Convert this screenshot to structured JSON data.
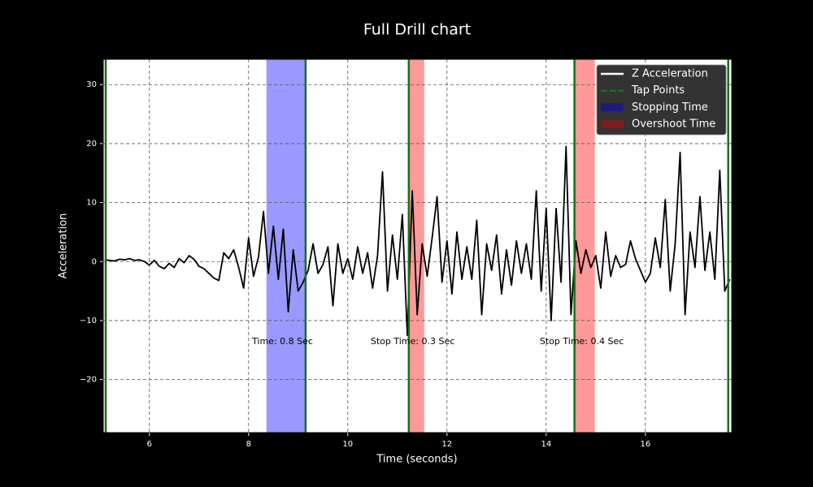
{
  "chart_data": {
    "type": "line",
    "title": "Full Drill chart",
    "xlabel": "Time (seconds)",
    "ylabel": "Acceleration",
    "xlim": [
      5.07,
      17.74
    ],
    "ylim": [
      -29.0,
      34.3
    ],
    "xticks": [
      6,
      8,
      10,
      12,
      14,
      16
    ],
    "yticks": [
      {
        "value": -20,
        "label": "−20"
      },
      {
        "value": -10,
        "label": "−10"
      },
      0,
      10,
      20,
      30
    ],
    "grid": true,
    "legend": "upper right",
    "x": [
      5.1,
      5.2,
      5.3,
      5.4,
      5.5,
      5.6,
      5.7,
      5.8,
      5.9,
      6.0,
      6.1,
      6.2,
      6.3,
      6.4,
      6.5,
      6.6,
      6.7,
      6.8,
      6.9,
      7.0,
      7.1,
      7.2,
      7.3,
      7.4,
      7.5,
      7.6,
      7.7,
      7.8,
      7.9,
      8.0,
      8.1,
      8.2,
      8.3,
      8.4,
      8.5,
      8.6,
      8.7,
      8.8,
      8.9,
      9.0,
      9.1,
      9.2,
      9.3,
      9.4,
      9.5,
      9.6,
      9.7,
      9.8,
      9.9,
      10.0,
      10.1,
      10.2,
      10.3,
      10.4,
      10.5,
      10.6,
      10.7,
      10.8,
      10.9,
      11.0,
      11.1,
      11.2,
      11.3,
      11.4,
      11.5,
      11.6,
      11.7,
      11.8,
      11.9,
      12.0,
      12.1,
      12.2,
      12.3,
      12.4,
      12.5,
      12.6,
      12.7,
      12.8,
      12.9,
      13.0,
      13.1,
      13.2,
      13.3,
      13.4,
      13.5,
      13.6,
      13.7,
      13.8,
      13.9,
      14.0,
      14.1,
      14.2,
      14.3,
      14.4,
      14.5,
      14.6,
      14.7,
      14.8,
      14.9,
      15.0,
      15.1,
      15.2,
      15.3,
      15.4,
      15.5,
      15.6,
      15.7,
      15.8,
      15.9,
      16.0,
      16.1,
      16.2,
      16.3,
      16.4,
      16.5,
      16.6,
      16.7,
      16.8,
      16.9,
      17.0,
      17.1,
      17.2,
      17.3,
      17.4,
      17.5,
      17.6,
      17.7
    ],
    "series": [
      {
        "name": "Z Acceleration",
        "color": "#000000",
        "legend_color": "#ffffff",
        "values": [
          0.3,
          0.2,
          0.1,
          0.4,
          0.3,
          0.5,
          0.2,
          0.3,
          0.0,
          -0.6,
          0.2,
          -0.8,
          -1.2,
          -0.3,
          -1.0,
          0.5,
          -0.2,
          1.0,
          0.4,
          -0.8,
          -1.2,
          -2.0,
          -2.8,
          -3.2,
          1.5,
          0.5,
          2.0,
          -1.0,
          -4.5,
          4.0,
          -2.5,
          0.8,
          8.5,
          -2.0,
          6.0,
          -3.0,
          5.5,
          -8.5,
          2.0,
          -5.0,
          -3.5,
          -1.5,
          3.0,
          -2.0,
          -0.5,
          2.5,
          -7.5,
          3.0,
          -2.0,
          0.5,
          -3.0,
          2.5,
          -2.0,
          1.5,
          -4.5,
          1.0,
          15.2,
          -5.0,
          4.5,
          -3.0,
          8.0,
          -12.5,
          12.0,
          -9.0,
          3.0,
          -2.5,
          4.0,
          11.0,
          -3.5,
          3.5,
          -5.5,
          5.0,
          -3.0,
          2.5,
          -3.0,
          7.0,
          -9.0,
          3.0,
          -1.5,
          4.5,
          -5.5,
          2.0,
          -4.0,
          3.5,
          -2.0,
          3.0,
          -3.0,
          12.0,
          -5.0,
          9.0,
          -10.0,
          9.0,
          -3.5,
          19.5,
          -9.0,
          3.5,
          -2.0,
          2.0,
          -1.0,
          1.0,
          -4.5,
          5.0,
          -2.5,
          1.0,
          -1.0,
          -0.5,
          3.5,
          0.5,
          -1.5,
          -3.5,
          -2.0,
          4.0,
          -1.0,
          10.5,
          -5.0,
          3.0,
          18.5,
          -9.0,
          5.0,
          -1.0,
          11.0,
          -1.5,
          5.0,
          -3.0,
          15.5,
          -5.0,
          -3.0
        ]
      }
    ],
    "vlines": {
      "name": "Tap Points",
      "color": "#157015",
      "values": [
        5.12,
        9.15,
        11.23,
        14.57,
        17.67
      ]
    },
    "spans": [
      {
        "name": "Stopping Time",
        "color": "#9999ff",
        "legend_color": "#1c1c80",
        "ranges": [
          [
            8.36,
            9.15
          ]
        ]
      },
      {
        "name": "Overshoot Time",
        "color": "#ff9999",
        "legend_color": "#801c1c",
        "ranges": [
          [
            11.23,
            11.54
          ],
          [
            14.57,
            14.98
          ]
        ]
      }
    ],
    "annotations": [
      {
        "text": "Time: 0.8 Sec",
        "x": 8.07,
        "y": -13.6
      },
      {
        "text": "Stop Time: 0.3 Sec",
        "x": 10.46,
        "y": -13.6
      },
      {
        "text": "Stop Time: 0.4 Sec",
        "x": 13.87,
        "y": -13.6
      }
    ]
  }
}
